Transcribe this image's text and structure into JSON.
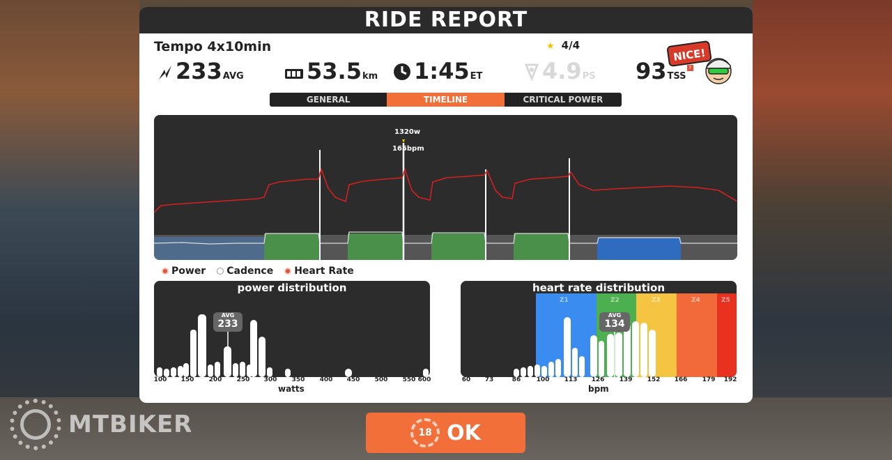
{
  "header": {
    "title": "RIDE REPORT"
  },
  "workout": {
    "name": "Tempo 4x10min",
    "stars": "4/4"
  },
  "stats": {
    "power": {
      "value": "233",
      "unit": "AVG"
    },
    "distance": {
      "value": "53.5",
      "unit": "km"
    },
    "time": {
      "value": "1:45",
      "unit": "ET"
    },
    "ps": {
      "value": "4.9",
      "unit": "PS"
    },
    "tss": {
      "value": "93",
      "unit": "TSS"
    }
  },
  "badge": {
    "nice": "NICE!"
  },
  "tabs": [
    {
      "label": "GENERAL",
      "active": false
    },
    {
      "label": "TIMELINE",
      "active": true
    },
    {
      "label": "CRITICAL POWER",
      "active": false
    }
  ],
  "timeline": {
    "peak_power": "1320w",
    "peak_hr": "165bpm"
  },
  "legend": {
    "power": "Power",
    "cadence": "Cadence",
    "hr": "Heart Rate"
  },
  "power_dist": {
    "title": "power distribution",
    "ticks": [
      "100",
      "150",
      "200",
      "250",
      "300",
      "350",
      "400",
      "450",
      "500",
      "550",
      "600"
    ],
    "xlabel": "watts",
    "avg_label": "AVG",
    "avg_value": "233"
  },
  "hr_dist": {
    "title": "heart rate distribution",
    "ticks": [
      "60",
      "73",
      "86",
      "100",
      "113",
      "126",
      "139",
      "152",
      "166",
      "179",
      "192"
    ],
    "xlabel": "bpm",
    "zones": [
      "Z1",
      "Z2",
      "Z3",
      "Z4",
      "Z5"
    ],
    "avg_label": "AVG",
    "avg_value": "134"
  },
  "colors": {
    "accent": "#f26f3a",
    "z1": "#3b8cf0",
    "z2": "#4caf50",
    "z3": "#f5c542",
    "z4": "#f26a3a",
    "z5": "#e8321f",
    "power_line": "#d42020"
  },
  "ok_button": {
    "label": "OK",
    "countdown": "18"
  },
  "watermark": {
    "text": "MTBIKER"
  }
}
